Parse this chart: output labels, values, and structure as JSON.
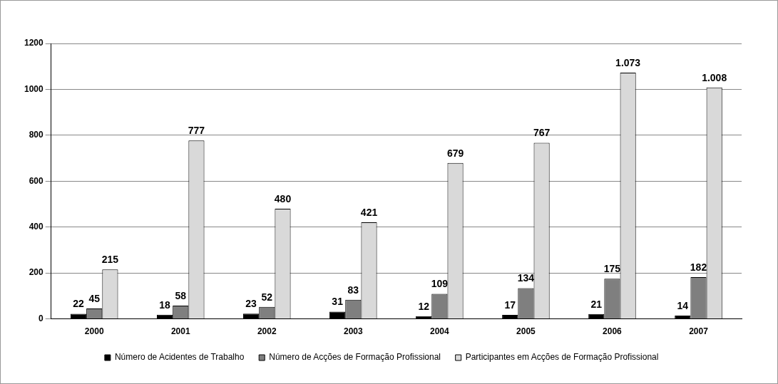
{
  "chart_data": {
    "type": "bar",
    "categories": [
      "2000",
      "2001",
      "2002",
      "2003",
      "2004",
      "2005",
      "2006",
      "2007"
    ],
    "series": [
      {
        "name": "Número de Acidentes de Trabalho",
        "color": "#000000",
        "values": [
          22,
          18,
          23,
          31,
          12,
          17,
          21,
          14
        ],
        "value_labels": [
          "22",
          "18",
          "23",
          "31",
          "12",
          "17",
          "21",
          "14"
        ]
      },
      {
        "name": "Número de Acções de Formação Profissional",
        "color": "#7f7f7f",
        "values": [
          45,
          58,
          52,
          83,
          109,
          134,
          175,
          182
        ],
        "value_labels": [
          "45",
          "58",
          "52",
          "83",
          "109",
          "134",
          "175",
          "182"
        ]
      },
      {
        "name": "Participantes em Acções de Formação Profissional",
        "color": "#d9d9d9",
        "values": [
          215,
          777,
          480,
          421,
          679,
          767,
          1073,
          1008
        ],
        "value_labels": [
          "215",
          "777",
          "480",
          "421",
          "679",
          "767",
          "1.073",
          "1.008"
        ]
      }
    ],
    "ylim": [
      0,
      1200
    ],
    "yticks": [
      0,
      200,
      400,
      600,
      800,
      1000,
      1200
    ],
    "grid": "y",
    "legend": "bottom"
  }
}
